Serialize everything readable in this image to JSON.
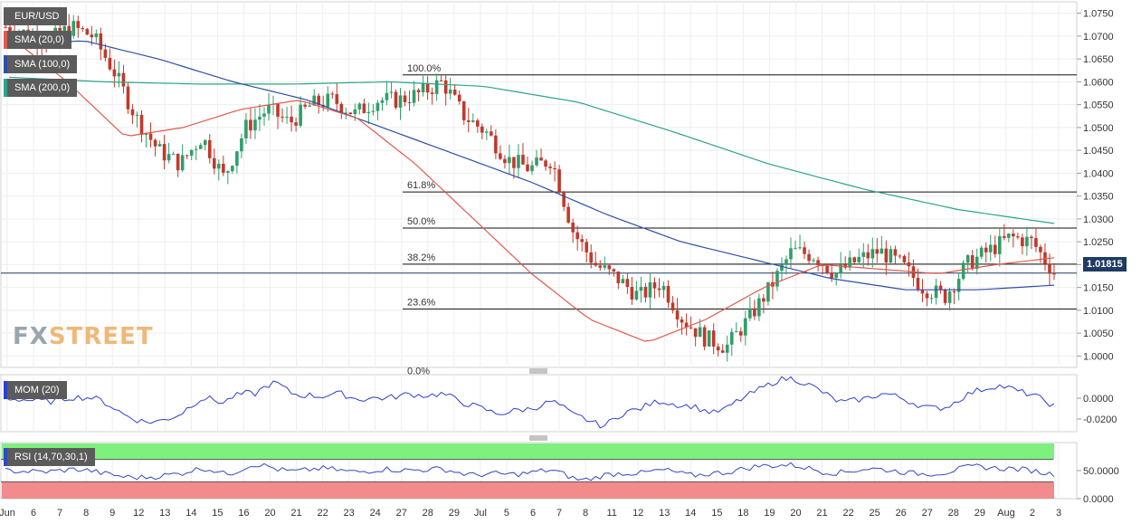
{
  "instrument": "EUR/USD",
  "legend": {
    "sma20": "SMA (20,0)",
    "sma100": "SMA (100,0)",
    "sma200": "SMA (200,0)",
    "mom": "MOM (20)",
    "rsi": "RSI (14,70,30,1)"
  },
  "colors": {
    "sma20": "#e05a4f",
    "sma100": "#2e4fa8",
    "sma200": "#2aa589",
    "bull": "#2f9e6b",
    "bear": "#c0392b",
    "momentum": "#2d3fcf",
    "rsi_line": "#3348c4",
    "rsi_overbought": "#7ef07e",
    "rsi_oversold": "#f28b8b",
    "price_line": "#1f3b64"
  },
  "logo": {
    "fx": "FX",
    "street": "STREET"
  },
  "current_price": "1.01815",
  "chart_data": {
    "type": "candlestick",
    "price_axis": {
      "ticks": [
        "1.0750",
        "1.0700",
        "1.0650",
        "1.0600",
        "1.0550",
        "1.0500",
        "1.0450",
        "1.0400",
        "1.0350",
        "1.0300",
        "1.0250",
        "1.0200",
        "1.0150",
        "1.0100",
        "1.0050",
        "1.0000"
      ],
      "tick_values": [
        1.075,
        1.07,
        1.065,
        1.06,
        1.055,
        1.05,
        1.045,
        1.04,
        1.035,
        1.03,
        1.025,
        1.02,
        1.015,
        1.01,
        1.005,
        1.0
      ],
      "range": [
        0.9975,
        1.0775
      ]
    },
    "x_axis_labels": [
      "Jun",
      "6",
      "7",
      "8",
      "9",
      "12",
      "13",
      "14",
      "15",
      "16",
      "20",
      "21",
      "22",
      "23",
      "24",
      "27",
      "28",
      "29",
      "Jul",
      "5",
      "6",
      "7",
      "8",
      "11",
      "12",
      "13",
      "14",
      "15",
      "18",
      "19",
      "20",
      "21",
      "22",
      "25",
      "26",
      "27",
      "28",
      "29",
      "Aug",
      "2",
      "3"
    ],
    "fibonacci": [
      {
        "label": "100.0%",
        "value": 1.0615
      },
      {
        "label": "61.8%",
        "value": 1.0359
      },
      {
        "label": "50.0%",
        "value": 1.028
      },
      {
        "label": "38.2%",
        "value": 1.0201
      },
      {
        "label": "23.6%",
        "value": 1.0103
      },
      {
        "label": "0.0%",
        "value": 0.9952
      }
    ],
    "daily_close": [
      1.072,
      1.0705,
      1.069,
      1.072,
      1.07,
      1.062,
      1.052,
      1.045,
      1.042,
      1.048,
      1.039,
      1.05,
      1.054,
      1.051,
      1.055,
      1.056,
      1.053,
      1.056,
      1.056,
      1.0575,
      1.06,
      1.0525,
      1.049,
      1.043,
      1.041,
      1.043,
      1.027,
      1.02,
      1.017,
      1.013,
      1.016,
      1.008,
      1.004,
      1.002,
      1.008,
      1.015,
      1.023,
      1.022,
      1.018,
      1.021,
      1.023,
      1.02,
      1.015,
      1.013,
      1.02,
      1.023,
      1.026,
      1.025,
      1.0182
    ],
    "sma20": [
      1.07,
      1.06,
      1.048,
      1.05,
      1.054,
      1.056,
      1.052,
      1.042,
      1.03,
      1.018,
      1.008,
      1.003,
      1.008,
      1.015,
      1.02,
      1.019,
      1.018,
      1.02,
      1.0215
    ],
    "sma100": [
      1.068,
      1.069,
      1.065,
      1.06,
      1.056,
      1.05,
      1.044,
      1.038,
      1.031,
      1.025,
      1.021,
      1.017,
      1.0145,
      1.0145,
      1.0155
    ],
    "sma200": [
      1.061,
      1.06,
      1.0595,
      1.0595,
      1.06,
      1.059,
      1.0555,
      1.049,
      1.042,
      1.0365,
      1.032,
      1.029
    ],
    "momentum_axis": {
      "ticks": [
        "0.0000",
        "-0.0200"
      ],
      "tick_values": [
        0.0,
        -0.02
      ]
    },
    "rsi_axis": {
      "ticks": [
        "50.0000",
        "0.0000"
      ],
      "tick_values": [
        50,
        0
      ],
      "overbought": 70,
      "oversold": 30
    }
  }
}
